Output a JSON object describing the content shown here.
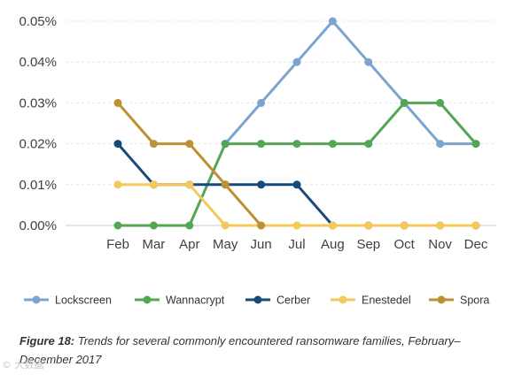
{
  "chart_data": {
    "type": "line",
    "categories": [
      "Feb",
      "Mar",
      "Apr",
      "May",
      "Jun",
      "Jul",
      "Aug",
      "Sep",
      "Oct",
      "Nov",
      "Dec"
    ],
    "y_ticks": [
      "0.00%",
      "0.01%",
      "0.02%",
      "0.03%",
      "0.04%",
      "0.05%"
    ],
    "ylim": [
      0,
      0.05
    ],
    "grid": true,
    "legend_position": "bottom",
    "series": [
      {
        "name": "Lockscreen",
        "color": "#7ba4d0",
        "values": [
          null,
          null,
          null,
          0.02,
          0.03,
          0.04,
          0.05,
          0.04,
          0.03,
          0.02,
          0.02
        ]
      },
      {
        "name": "Wannacrypt",
        "color": "#53a653",
        "values": [
          0,
          0,
          0,
          0.02,
          0.02,
          0.02,
          0.02,
          0.02,
          0.03,
          0.03,
          0.02
        ]
      },
      {
        "name": "Cerber",
        "color": "#154a7a",
        "values": [
          0.02,
          0.01,
          0.01,
          0.01,
          0.01,
          0.01,
          0,
          0,
          0,
          0,
          0
        ]
      },
      {
        "name": "Enestedel",
        "color": "#f5c85a",
        "values": [
          0.01,
          0.01,
          0.01,
          0,
          0,
          0,
          0,
          0,
          0,
          0,
          0
        ]
      },
      {
        "name": "Spora",
        "color": "#bf8f34",
        "values": [
          0.03,
          0.02,
          0.02,
          0.01,
          0,
          null,
          null,
          null,
          null,
          null,
          null
        ]
      }
    ]
  },
  "caption": {
    "label": "Figure 18:",
    "text": "Trends for several commonly encountered ransomware families, February–December 2017"
  },
  "watermark": "© 大数据"
}
